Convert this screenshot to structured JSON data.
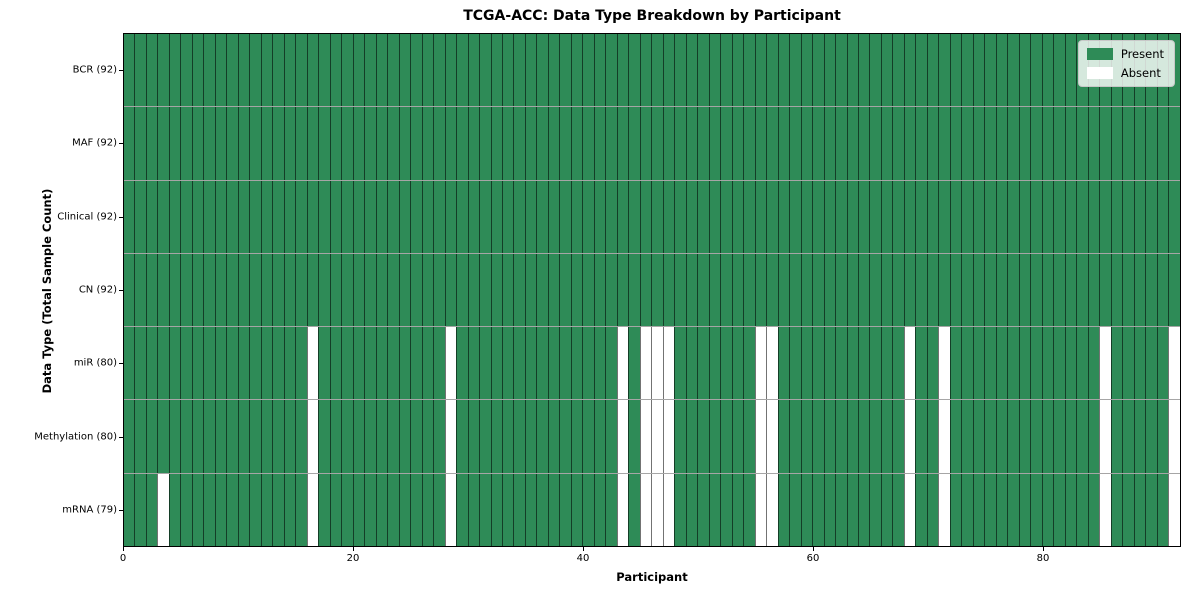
{
  "chart_data": {
    "type": "heatmap",
    "title": "TCGA-ACC: Data Type Breakdown by Participant",
    "xlabel": "Participant",
    "ylabel": "Data Type (Total Sample Count)",
    "n_participants": 92,
    "x_ticks": [
      0,
      20,
      40,
      60,
      80
    ],
    "x_range": [
      0,
      92
    ],
    "grid": false,
    "legend_position": "upper right",
    "colors": {
      "present": "#2e8b57",
      "absent": "#ffffff"
    },
    "legend": [
      {
        "label": "Present",
        "color": "#2e8b57"
      },
      {
        "label": "Absent",
        "color": "#ffffff"
      }
    ],
    "rows": [
      {
        "label": "BCR (92)",
        "data_type": "BCR",
        "count": 92,
        "absent_participants": []
      },
      {
        "label": "MAF (92)",
        "data_type": "MAF",
        "count": 92,
        "absent_participants": []
      },
      {
        "label": "Clinical (92)",
        "data_type": "Clinical",
        "count": 92,
        "absent_participants": []
      },
      {
        "label": "CN (92)",
        "data_type": "CN",
        "count": 92,
        "absent_participants": []
      },
      {
        "label": "miR (80)",
        "data_type": "miR",
        "count": 80,
        "absent_participants": [
          16,
          28,
          43,
          45,
          46,
          47,
          55,
          56,
          68,
          71,
          85,
          91
        ]
      },
      {
        "label": "Methylation (80)",
        "data_type": "Methylation",
        "count": 80,
        "absent_participants": [
          16,
          28,
          43,
          45,
          46,
          47,
          55,
          56,
          68,
          71,
          85,
          91
        ]
      },
      {
        "label": "mRNA (79)",
        "data_type": "mRNA",
        "count": 79,
        "absent_participants": [
          3,
          16,
          28,
          43,
          45,
          46,
          47,
          55,
          56,
          68,
          71,
          85,
          91
        ]
      }
    ]
  }
}
